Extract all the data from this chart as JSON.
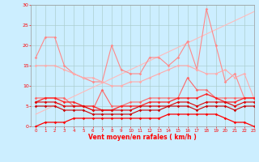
{
  "x": [
    0,
    1,
    2,
    3,
    4,
    5,
    6,
    7,
    8,
    9,
    10,
    11,
    12,
    13,
    14,
    15,
    16,
    17,
    18,
    19,
    20,
    21,
    22,
    23
  ],
  "series": [
    {
      "name": "trend_line",
      "color": "#ffbbbb",
      "linewidth": 0.8,
      "marker": null,
      "markersize": 0,
      "values": [
        3,
        4.1,
        5.2,
        6.3,
        7.4,
        8.5,
        9.6,
        10.7,
        11.8,
        12.9,
        14.0,
        15.1,
        16.2,
        17.3,
        18.4,
        19.5,
        20.6,
        21.7,
        22.8,
        23.9,
        25.0,
        26.1,
        27.2,
        28.3
      ]
    },
    {
      "name": "rafales_max",
      "color": "#ff8888",
      "linewidth": 0.8,
      "marker": "D",
      "markersize": 1.8,
      "values": [
        17,
        22,
        22,
        15,
        13,
        12,
        11,
        11,
        20,
        14,
        13,
        13,
        17,
        17,
        15,
        17,
        21,
        14,
        29,
        20,
        11,
        13,
        7,
        7
      ]
    },
    {
      "name": "rafales_mean",
      "color": "#ffaaaa",
      "linewidth": 0.8,
      "marker": "D",
      "markersize": 1.8,
      "values": [
        15,
        15,
        15,
        14,
        13,
        12,
        12,
        11,
        10,
        10,
        11,
        11,
        12,
        13,
        14,
        15,
        15,
        14,
        13,
        13,
        14,
        12,
        13,
        7
      ]
    },
    {
      "name": "vent_moyen_high",
      "color": "#ff6666",
      "linewidth": 0.8,
      "marker": "D",
      "markersize": 1.8,
      "values": [
        7,
        7,
        7,
        7,
        5,
        5,
        4,
        9,
        5,
        5,
        6,
        6,
        7,
        7,
        7,
        7,
        12,
        9,
        9,
        7,
        7,
        7,
        7,
        7
      ]
    },
    {
      "name": "vent_moyen",
      "color": "#ff2222",
      "linewidth": 0.9,
      "marker": "D",
      "markersize": 1.8,
      "values": [
        6,
        7,
        7,
        6,
        6,
        5,
        5,
        4,
        4,
        5,
        5,
        5,
        6,
        6,
        6,
        7,
        7,
        7,
        8,
        7,
        6,
        6,
        7,
        7
      ]
    },
    {
      "name": "vent_lower1",
      "color": "#dd0000",
      "linewidth": 0.8,
      "marker": "D",
      "markersize": 1.8,
      "values": [
        6,
        6,
        6,
        5,
        5,
        5,
        4,
        4,
        4,
        4,
        4,
        5,
        5,
        5,
        5,
        6,
        6,
        5,
        6,
        6,
        6,
        5,
        6,
        6
      ]
    },
    {
      "name": "vent_lower2",
      "color": "#cc0000",
      "linewidth": 0.8,
      "marker": "D",
      "markersize": 1.8,
      "values": [
        5,
        5,
        5,
        4,
        4,
        4,
        3,
        3,
        3,
        3,
        3,
        4,
        4,
        4,
        5,
        5,
        5,
        4,
        5,
        5,
        5,
        4,
        5,
        5
      ]
    },
    {
      "name": "vent_min",
      "color": "#ff0000",
      "linewidth": 0.9,
      "marker": "D",
      "markersize": 1.8,
      "values": [
        0,
        1,
        1,
        1,
        2,
        2,
        2,
        2,
        2,
        2,
        2,
        2,
        2,
        2,
        3,
        3,
        3,
        3,
        3,
        3,
        2,
        1,
        1,
        0
      ]
    }
  ],
  "xlabel": "Vent moyen/en rafales ( km/h )",
  "xlim": [
    -0.5,
    23
  ],
  "ylim": [
    0,
    30
  ],
  "yticks": [
    0,
    5,
    10,
    15,
    20,
    25,
    30
  ],
  "xticks": [
    0,
    1,
    2,
    3,
    4,
    5,
    6,
    7,
    8,
    9,
    10,
    11,
    12,
    13,
    14,
    15,
    16,
    17,
    18,
    19,
    20,
    21,
    22,
    23
  ],
  "background_color": "#cceeff",
  "grid_color": "#aacccc",
  "xlabel_color": "#ff0000",
  "tick_color": "#ff0000",
  "figsize": [
    3.2,
    2.0
  ],
  "dpi": 100
}
